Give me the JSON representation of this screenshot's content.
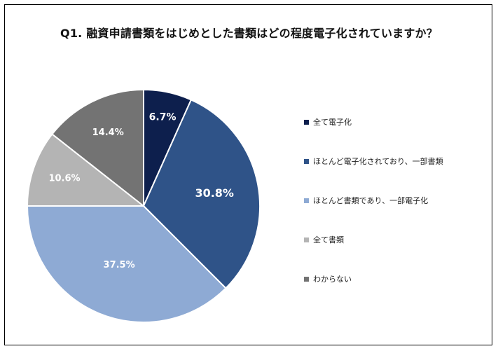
{
  "chart_data": {
    "type": "pie",
    "title": "Q1. 融資申請書類をはじめとした書類はどの程度電子化されていますか？",
    "categories": [
      "全て電子化",
      "ほとんど電子化されており、一部書類",
      "ほとんど書類であり、一部電子化",
      "全て書類",
      "わからない"
    ],
    "values": [
      6.7,
      30.8,
      37.5,
      10.6,
      14.4
    ],
    "data_labels": [
      "6.7%",
      "30.8%",
      "37.5%",
      "10.6%",
      "14.4%"
    ],
    "colors": [
      "#0d1f4d",
      "#2f5388",
      "#8eaad4",
      "#b4b4b4",
      "#737373"
    ],
    "label_colors": [
      "#ffffff",
      "#ffffff",
      "#ffffff",
      "#ffffff",
      "#ffffff"
    ],
    "legend_position": "right",
    "start_angle": "12 o'clock",
    "direction": "clockwise"
  }
}
